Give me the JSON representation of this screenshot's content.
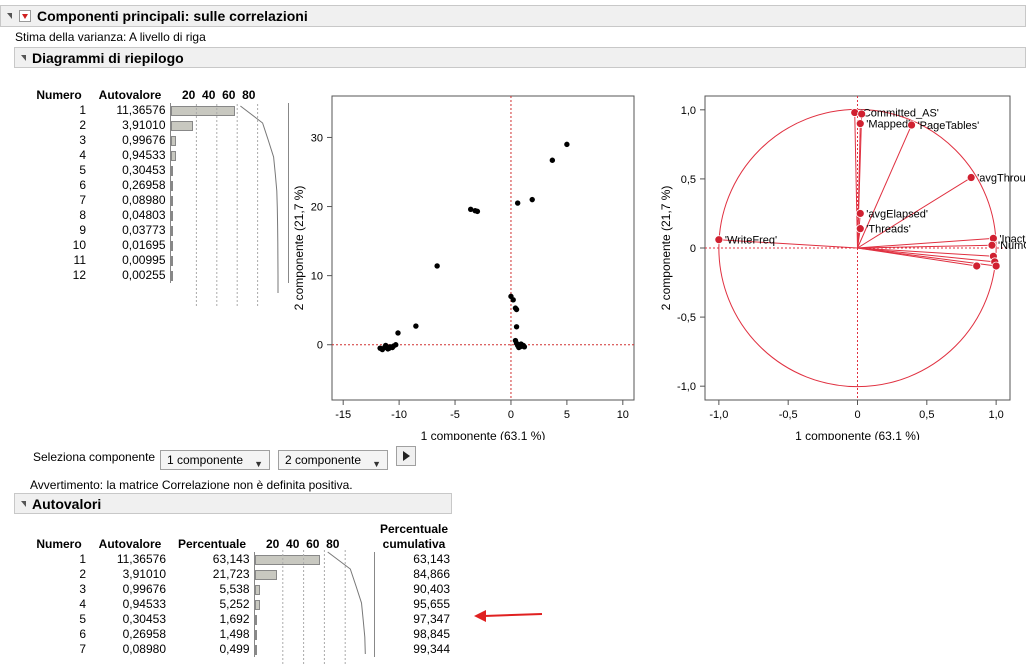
{
  "report": {
    "title": "Componenti principali: sulle correlazioni",
    "variance_estimate": "Stima della varianza: A livello di riga"
  },
  "summary": {
    "title": "Diagrammi di riepilogo",
    "col_numero": "Numero",
    "col_autovalore": "Autovalore",
    "bar_ticks": [
      "20",
      "40",
      "60",
      "80"
    ],
    "rows": [
      {
        "n": "1",
        "v": "11,36576",
        "pct": 63.143
      },
      {
        "n": "2",
        "v": "3,91010",
        "pct": 21.723
      },
      {
        "n": "3",
        "v": "0,99676",
        "pct": 5.538
      },
      {
        "n": "4",
        "v": "0,94533",
        "pct": 5.252
      },
      {
        "n": "5",
        "v": "0,30453",
        "pct": 1.692
      },
      {
        "n": "6",
        "v": "0,26958",
        "pct": 1.498
      },
      {
        "n": "7",
        "v": "0,08980",
        "pct": 0.499
      },
      {
        "n": "8",
        "v": "0,04803",
        "pct": 0.267
      },
      {
        "n": "9",
        "v": "0,03773",
        "pct": 0.21
      },
      {
        "n": "10",
        "v": "0,01695",
        "pct": 0.094
      },
      {
        "n": "11",
        "v": "0,00995",
        "pct": 0.055
      },
      {
        "n": "12",
        "v": "0,00255",
        "pct": 0.014
      }
    ]
  },
  "selector": {
    "label": "Seleziona componente",
    "first": "1 componente",
    "second": "2 componente"
  },
  "warning": "Avvertimento: la matrice Correlazione non è definita positiva.",
  "eigen": {
    "title": "Autovalori",
    "headers": [
      "Numero",
      "Autovalore",
      "Percentuale",
      "Percentuale cumulativa"
    ],
    "bar_ticks": [
      "20",
      "40",
      "60",
      "80"
    ],
    "rows": [
      {
        "n": "1",
        "v": "11,36576",
        "p": "63,143",
        "c": "63,143",
        "pct": 63.143
      },
      {
        "n": "2",
        "v": "3,91010",
        "p": "21,723",
        "c": "84,866",
        "pct": 21.723
      },
      {
        "n": "3",
        "v": "0,99676",
        "p": "5,538",
        "c": "90,403",
        "pct": 5.538
      },
      {
        "n": "4",
        "v": "0,94533",
        "p": "5,252",
        "c": "95,655",
        "pct": 5.252
      },
      {
        "n": "5",
        "v": "0,30453",
        "p": "1,692",
        "c": "97,347",
        "pct": 1.692
      },
      {
        "n": "6",
        "v": "0,26958",
        "p": "1,498",
        "c": "98,845",
        "pct": 1.498
      },
      {
        "n": "7",
        "v": "0,08980",
        "p": "0,499",
        "c": "99,344",
        "pct": 0.499
      }
    ]
  },
  "chart_data": [
    {
      "type": "scatter",
      "xlabel": "1 componente  (63,1 %)",
      "ylabel": "2 componente  (21,7 %)",
      "xlim": [
        -16,
        11
      ],
      "ylim": [
        -8,
        36
      ],
      "xticks": [
        -15,
        -10,
        -5,
        0,
        5,
        10
      ],
      "yticks": [
        0,
        10,
        20,
        30
      ],
      "points": [
        [
          5.0,
          29.0
        ],
        [
          3.7,
          26.7
        ],
        [
          1.9,
          21.0
        ],
        [
          0.6,
          20.5
        ],
        [
          -3.6,
          19.6
        ],
        [
          -3.2,
          19.4
        ],
        [
          -3.0,
          19.3
        ],
        [
          -6.6,
          11.4
        ],
        [
          -8.5,
          2.7
        ],
        [
          -10.1,
          1.7
        ],
        [
          0.0,
          7.0
        ],
        [
          0.2,
          6.5
        ],
        [
          0.4,
          5.3
        ],
        [
          0.5,
          5.1
        ],
        [
          0.5,
          2.6
        ],
        [
          0.4,
          0.6
        ],
        [
          0.5,
          0.2
        ],
        [
          0.6,
          -0.1
        ],
        [
          0.8,
          -0.3
        ],
        [
          1.0,
          -0.2
        ],
        [
          1.2,
          -0.3
        ],
        [
          0.7,
          -0.4
        ],
        [
          0.9,
          0.1
        ],
        [
          1.1,
          -0.1
        ],
        [
          -11.7,
          -0.5
        ],
        [
          -11.5,
          -0.7
        ],
        [
          -11.3,
          -0.4
        ],
        [
          -11.0,
          -0.6
        ],
        [
          -10.8,
          -0.3
        ],
        [
          -10.5,
          -0.2
        ],
        [
          -10.3,
          0.0
        ],
        [
          -11.2,
          -0.1
        ],
        [
          -10.9,
          -0.5
        ],
        [
          -10.6,
          -0.4
        ]
      ]
    },
    {
      "type": "scatter",
      "xlabel": "1 componente  (63,1 %)",
      "ylabel": "2 componente  (21,7 %)",
      "xlim": [
        -1.1,
        1.1
      ],
      "ylim": [
        -1.1,
        1.1
      ],
      "xticks": [
        -1.0,
        -0.5,
        0.0,
        0.5,
        1.0
      ],
      "yticks": [
        -1.0,
        -0.5,
        0.0,
        0.5,
        1.0
      ],
      "xtick_labels": [
        "-1,0",
        "-0,5",
        "0",
        "0,5",
        "1,0"
      ],
      "ytick_labels": [
        "-1,0",
        "-0,5",
        "0",
        "0,5",
        "1,0"
      ],
      "unit_circle": true,
      "loadings": [
        {
          "label": "'Committed_AS'",
          "x": -0.02,
          "y": 0.98
        },
        {
          "label": "'Mapped'",
          "x": 0.02,
          "y": 0.9
        },
        {
          "label": "'PageTables'",
          "x": 0.39,
          "y": 0.89
        },
        {
          "label": "'avgThroughput'",
          "x": 0.82,
          "y": 0.51
        },
        {
          "label": "'avgElapsed'",
          "x": 0.02,
          "y": 0.25
        },
        {
          "label": "'Threads'",
          "x": 0.02,
          "y": 0.14
        },
        {
          "label": "'Inactive'",
          "x": 0.98,
          "y": 0.07
        },
        {
          "label": "'NumOfAllocs'",
          "x": 0.97,
          "y": 0.02
        },
        {
          "label": "'WriteFreq'",
          "x": -1.0,
          "y": 0.06
        },
        {
          "label": "",
          "x": 0.98,
          "y": -0.06
        },
        {
          "label": "",
          "x": 0.99,
          "y": -0.1
        },
        {
          "label": "",
          "x": 1.0,
          "y": -0.13
        },
        {
          "label": "",
          "x": 0.86,
          "y": -0.13
        },
        {
          "label": "",
          "x": 0.03,
          "y": 0.97
        }
      ]
    }
  ]
}
